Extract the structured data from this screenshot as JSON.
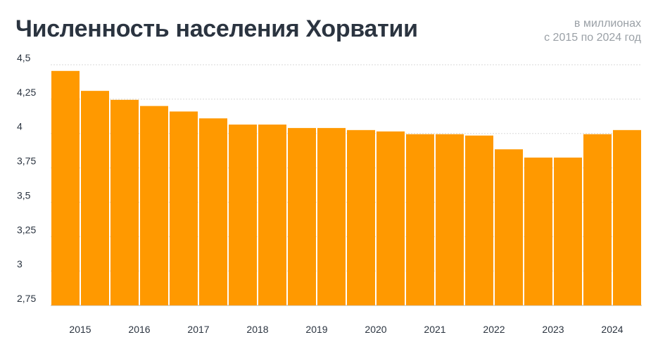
{
  "chart_data": {
    "type": "bar",
    "title": "Численность населения Хорватии",
    "subtitle": [
      "в миллионах",
      "с 2015 по 2024 год"
    ],
    "xlabel": "",
    "ylabel": "",
    "ylim": [
      2.75,
      4.5
    ],
    "yticks": [
      {
        "value": 2.75,
        "label": "2,75"
      },
      {
        "value": 3.0,
        "label": "3"
      },
      {
        "value": 3.25,
        "label": "3,25"
      },
      {
        "value": 3.5,
        "label": "3,5"
      },
      {
        "value": 3.75,
        "label": "3,75"
      },
      {
        "value": 4.0,
        "label": "4"
      },
      {
        "value": 4.25,
        "label": "4,25"
      },
      {
        "value": 4.5,
        "label": "4,5"
      }
    ],
    "xtick_labels": [
      "2015",
      "2016",
      "2017",
      "2018",
      "2019",
      "2020",
      "2021",
      "2022",
      "2023",
      "2024"
    ],
    "values": [
      4.455,
      4.31,
      4.245,
      4.2,
      4.16,
      4.11,
      4.065,
      4.065,
      4.04,
      4.04,
      4.025,
      4.015,
      3.995,
      3.995,
      3.985,
      3.885,
      3.825,
      3.825,
      3.995,
      4.025
    ],
    "bar_color": "#ff9900",
    "grid": true
  }
}
